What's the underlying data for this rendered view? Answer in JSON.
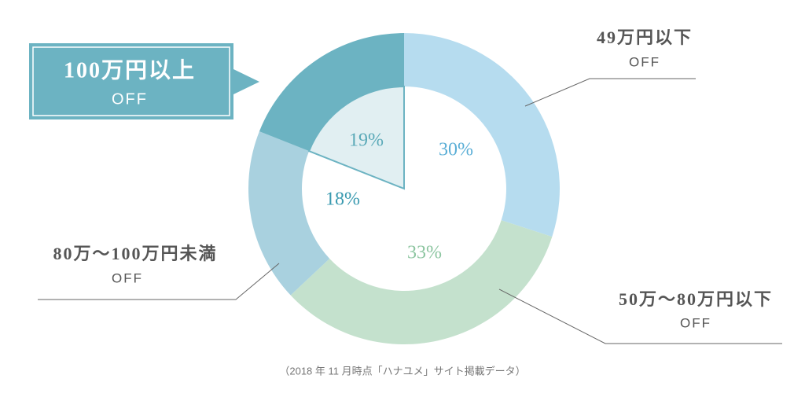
{
  "chart_data": {
    "type": "donut",
    "categories": [
      "49万円以下",
      "50万～80万円以下",
      "80万～100万円未満",
      "100万円以上"
    ],
    "category_sublabels": [
      "OFF",
      "OFF",
      "OFF",
      "OFF"
    ],
    "values": [
      30,
      33,
      18,
      19
    ],
    "value_labels": [
      "30%",
      "33%",
      "18%",
      "19%"
    ],
    "colors": [
      "#b6dcef",
      "#c4e1cd",
      "#a9d1df",
      "#6cb3c2"
    ],
    "footnote": "（2018 年 11 月時点「ハナユメ」サイト掲載データ）"
  }
}
